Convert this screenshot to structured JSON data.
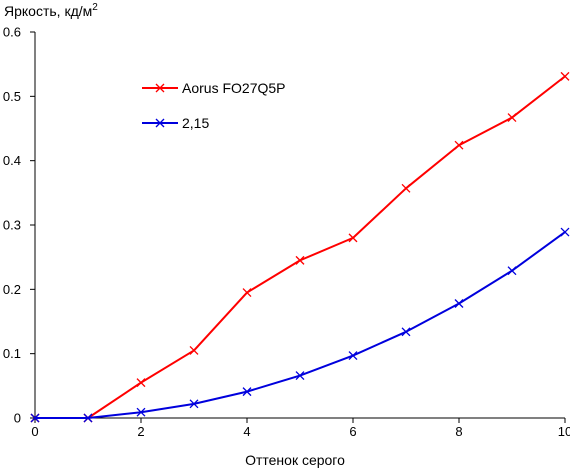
{
  "chart_data": {
    "type": "line",
    "ylabel_main": "Яркость, кд/м",
    "ylabel_sup": "2",
    "xlabel": "Оттенок серого",
    "xlim": [
      0,
      10
    ],
    "ylim": [
      0,
      0.6
    ],
    "x_ticks": [
      0,
      2,
      4,
      6,
      8,
      10
    ],
    "x_tick_labels": [
      "0",
      "2",
      "4",
      "6",
      "8",
      "10"
    ],
    "y_ticks": [
      0,
      0.1,
      0.2,
      0.3,
      0.4,
      0.5,
      0.6
    ],
    "y_tick_labels": [
      "0",
      "0.1",
      "0.2",
      "0.3",
      "0.4",
      "0.5",
      "0.6"
    ],
    "grid": false,
    "legend_position": "top-left",
    "x": [
      0,
      1,
      2,
      3,
      4,
      5,
      6,
      7,
      8,
      9,
      10
    ],
    "series": [
      {
        "name": "Aorus FO27Q5P",
        "color": "#ff0000",
        "marker": "x",
        "values": [
          0,
          0,
          0.055,
          0.105,
          0.195,
          0.245,
          0.28,
          0.357,
          0.424,
          0.467,
          0.531
        ]
      },
      {
        "name": "2,15",
        "color": "#0000dd",
        "marker": "x",
        "values": [
          0,
          0,
          0.009,
          0.022,
          0.041,
          0.066,
          0.097,
          0.134,
          0.178,
          0.229,
          0.289
        ]
      }
    ]
  }
}
